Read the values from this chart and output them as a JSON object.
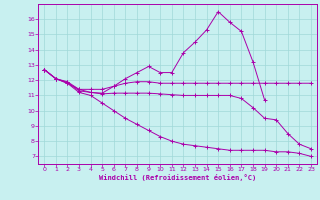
{
  "background_color": "#c8f0f0",
  "grid_color": "#a0d8d8",
  "line_color": "#aa00aa",
  "marker": "+",
  "xlabel": "Windchill (Refroidissement éolien,°C)",
  "ylim": [
    6.5,
    17.0
  ],
  "xlim": [
    -0.5,
    23.5
  ],
  "yticks": [
    7,
    8,
    9,
    10,
    11,
    12,
    13,
    14,
    15,
    16
  ],
  "xticks": [
    0,
    1,
    2,
    3,
    4,
    5,
    6,
    7,
    8,
    9,
    10,
    11,
    12,
    13,
    14,
    15,
    16,
    17,
    18,
    19,
    20,
    21,
    22,
    23
  ],
  "series": [
    [
      12.7,
      12.1,
      11.9,
      11.4,
      11.2,
      11.15,
      11.6,
      12.1,
      12.5,
      12.9,
      12.5,
      12.5,
      13.8,
      14.5,
      15.3,
      16.5,
      15.8,
      15.2,
      13.2,
      10.7,
      null,
      null,
      null,
      null
    ],
    [
      12.7,
      12.1,
      11.8,
      11.4,
      11.4,
      11.4,
      11.6,
      11.8,
      11.9,
      11.9,
      11.8,
      11.8,
      11.8,
      11.8,
      11.8,
      11.8,
      11.8,
      11.8,
      11.8,
      11.8,
      11.8,
      11.8,
      11.8,
      11.8
    ],
    [
      12.7,
      12.1,
      11.85,
      11.3,
      11.2,
      11.1,
      11.15,
      11.15,
      11.15,
      11.15,
      11.1,
      11.05,
      11.0,
      11.0,
      11.0,
      11.0,
      11.0,
      10.8,
      10.2,
      9.5,
      9.4,
      8.5,
      7.8,
      7.5
    ],
    [
      12.7,
      12.1,
      11.8,
      11.2,
      11.0,
      10.5,
      10.0,
      9.5,
      9.1,
      8.7,
      8.3,
      8.0,
      7.8,
      7.7,
      7.6,
      7.5,
      7.4,
      7.4,
      7.4,
      7.4,
      7.3,
      7.3,
      7.2,
      7.0
    ]
  ]
}
